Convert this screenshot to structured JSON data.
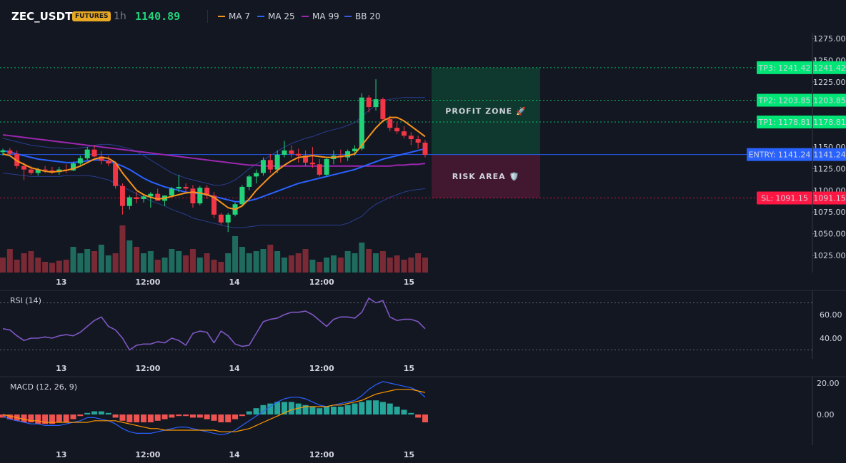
{
  "header": {
    "symbol": "ZEC_USDT",
    "badge": "FUTURES",
    "timeframe": "1h",
    "price": "1140.89",
    "legend": [
      {
        "label": "MA 7",
        "color": "#f7931a"
      },
      {
        "label": "MA 25",
        "color": "#2962ff"
      },
      {
        "label": "MA 99",
        "color": "#9c27b0"
      },
      {
        "label": "BB 20",
        "color": "#1e3a8a"
      }
    ]
  },
  "colors": {
    "bg": "#131722",
    "up": "#26a69a",
    "upBright": "#22d37a",
    "down": "#f23645",
    "grid": "#2a2e39"
  },
  "chart_data": [
    {
      "type": "candlestick",
      "panel": "price",
      "y_ticks": [
        1275,
        1250,
        1225,
        1200,
        1175,
        1150,
        1125,
        1100,
        1075,
        1050,
        1025
      ],
      "y_tick_labels": [
        "1275.00",
        "1250.00",
        "1225.00",
        "1200.00",
        "1175.00",
        "1150.00",
        "1125.00",
        "1100.00",
        "1075.00",
        "1050.00",
        "1025.00"
      ],
      "ylim": [
        1007,
        1290
      ],
      "x_ticks": [
        "13",
        "12:00",
        "14",
        "12:00",
        "15"
      ],
      "candles": [
        [
          1144,
          1148,
          1140,
          1146
        ],
        [
          1146,
          1149,
          1141,
          1142
        ],
        [
          1142,
          1146,
          1125,
          1128
        ],
        [
          1128,
          1132,
          1112,
          1124
        ],
        [
          1124,
          1128,
          1118,
          1120
        ],
        [
          1120,
          1126,
          1117,
          1124
        ],
        [
          1124,
          1128,
          1120,
          1123
        ],
        [
          1123,
          1127,
          1119,
          1121
        ],
        [
          1121,
          1127,
          1118,
          1124
        ],
        [
          1124,
          1130,
          1120,
          1123
        ],
        [
          1123,
          1133,
          1122,
          1131
        ],
        [
          1131,
          1140,
          1129,
          1137
        ],
        [
          1137,
          1150,
          1135,
          1147
        ],
        [
          1147,
          1152,
          1138,
          1139
        ],
        [
          1139,
          1145,
          1130,
          1134
        ],
        [
          1134,
          1140,
          1128,
          1131
        ],
        [
          1131,
          1133,
          1102,
          1105
        ],
        [
          1105,
          1108,
          1072,
          1082
        ],
        [
          1082,
          1094,
          1078,
          1092
        ],
        [
          1092,
          1098,
          1085,
          1090
        ],
        [
          1090,
          1096,
          1086,
          1093
        ],
        [
          1093,
          1098,
          1080,
          1096
        ],
        [
          1096,
          1102,
          1090,
          1088
        ],
        [
          1088,
          1092,
          1082,
          1094
        ],
        [
          1094,
          1104,
          1092,
          1102
        ],
        [
          1102,
          1118,
          1098,
          1104
        ],
        [
          1104,
          1108,
          1098,
          1102
        ],
        [
          1102,
          1106,
          1080,
          1085
        ],
        [
          1085,
          1105,
          1083,
          1103
        ],
        [
          1103,
          1106,
          1090,
          1094
        ],
        [
          1094,
          1098,
          1068,
          1072
        ],
        [
          1072,
          1074,
          1060,
          1063
        ],
        [
          1063,
          1074,
          1052,
          1072
        ],
        [
          1072,
          1086,
          1070,
          1084
        ],
        [
          1084,
          1106,
          1082,
          1104
        ],
        [
          1104,
          1118,
          1100,
          1116
        ],
        [
          1116,
          1124,
          1108,
          1120
        ],
        [
          1120,
          1138,
          1117,
          1135
        ],
        [
          1135,
          1142,
          1120,
          1124
        ],
        [
          1124,
          1146,
          1120,
          1141
        ],
        [
          1141,
          1157,
          1138,
          1146
        ],
        [
          1146,
          1152,
          1138,
          1142
        ],
        [
          1142,
          1148,
          1132,
          1140
        ],
        [
          1140,
          1146,
          1128,
          1132
        ],
        [
          1132,
          1150,
          1126,
          1130
        ],
        [
          1130,
          1136,
          1116,
          1118
        ],
        [
          1118,
          1138,
          1116,
          1136
        ],
        [
          1136,
          1146,
          1130,
          1140
        ],
        [
          1140,
          1147,
          1132,
          1138
        ],
        [
          1138,
          1147,
          1134,
          1145
        ],
        [
          1145,
          1152,
          1140,
          1148
        ],
        [
          1148,
          1212,
          1146,
          1207
        ],
        [
          1207,
          1210,
          1190,
          1196
        ],
        [
          1196,
          1228,
          1192,
          1205
        ],
        [
          1205,
          1207,
          1180,
          1182
        ],
        [
          1182,
          1186,
          1168,
          1172
        ],
        [
          1172,
          1178,
          1165,
          1168
        ],
        [
          1168,
          1174,
          1160,
          1163
        ],
        [
          1163,
          1167,
          1152,
          1159
        ],
        [
          1159,
          1163,
          1148,
          1155
        ],
        [
          1155,
          1158,
          1138,
          1141
        ]
      ],
      "volume": [
        14,
        22,
        12,
        18,
        20,
        14,
        10,
        9,
        11,
        12,
        24,
        18,
        22,
        20,
        26,
        16,
        18,
        44,
        30,
        24,
        18,
        20,
        12,
        14,
        22,
        20,
        16,
        22,
        14,
        18,
        12,
        10,
        18,
        34,
        24,
        18,
        20,
        22,
        26,
        20,
        14,
        16,
        18,
        22,
        12,
        10,
        14,
        16,
        14,
        20,
        18,
        28,
        22,
        18,
        20,
        14,
        16,
        12,
        14,
        18,
        14
      ],
      "volume_up": [
        false,
        false,
        false,
        false,
        false,
        false,
        false,
        false,
        false,
        false,
        true,
        true,
        true,
        false,
        true,
        true,
        false,
        false,
        true,
        false,
        true,
        true,
        false,
        true,
        true,
        true,
        false,
        false,
        true,
        false,
        false,
        false,
        true,
        true,
        true,
        true,
        true,
        true,
        false,
        true,
        true,
        false,
        false,
        false,
        true,
        false,
        true,
        true,
        false,
        true,
        true,
        true,
        false,
        true,
        false,
        false,
        false,
        false,
        false,
        false,
        false
      ],
      "ma7": [
        1142,
        1140,
        1134,
        1130,
        1126,
        1124,
        1122,
        1121,
        1122,
        1123,
        1125,
        1128,
        1132,
        1136,
        1138,
        1137,
        1132,
        1120,
        1110,
        1100,
        1095,
        1092,
        1090,
        1091,
        1093,
        1095,
        1097,
        1098,
        1097,
        1095,
        1092,
        1086,
        1080,
        1078,
        1082,
        1090,
        1100,
        1108,
        1116,
        1123,
        1129,
        1134,
        1138,
        1139,
        1140,
        1139,
        1138,
        1138,
        1139,
        1140,
        1142,
        1152,
        1162,
        1172,
        1180,
        1184,
        1184,
        1180,
        1174,
        1168,
        1162
      ],
      "ma25": [
        1146,
        1144,
        1142,
        1140,
        1138,
        1136,
        1135,
        1134,
        1133,
        1132,
        1132,
        1133,
        1134,
        1135,
        1135,
        1134,
        1131,
        1128,
        1124,
        1119,
        1114,
        1110,
        1107,
        1104,
        1102,
        1100,
        1098,
        1097,
        1096,
        1095,
        1093,
        1091,
        1089,
        1087,
        1087,
        1088,
        1090,
        1093,
        1096,
        1099,
        1102,
        1105,
        1108,
        1110,
        1112,
        1114,
        1116,
        1118,
        1120,
        1122,
        1124,
        1127,
        1130,
        1133,
        1136,
        1138,
        1140,
        1142,
        1144,
        1146,
        1148
      ],
      "ma99": [
        1164,
        1163,
        1162,
        1161,
        1160,
        1159,
        1158,
        1157,
        1156,
        1155,
        1154,
        1153,
        1152,
        1151,
        1150,
        1149,
        1148,
        1147,
        1146,
        1145,
        1144,
        1143,
        1142,
        1141,
        1140,
        1139,
        1138,
        1137,
        1136,
        1135,
        1134,
        1133,
        1132,
        1131,
        1130,
        1129,
        1129,
        1128,
        1128,
        1128,
        1128,
        1128,
        1128,
        1128,
        1128,
        1128,
        1128,
        1128,
        1128,
        1128,
        1128,
        1128,
        1128,
        1128,
        1128,
        1128,
        1129,
        1129,
        1130,
        1130,
        1131
      ],
      "bb_upper": [
        1160,
        1158,
        1156,
        1154,
        1152,
        1151,
        1150,
        1149,
        1149,
        1148,
        1148,
        1149,
        1150,
        1152,
        1153,
        1153,
        1152,
        1150,
        1148,
        1145,
        1140,
        1135,
        1130,
        1125,
        1120,
        1117,
        1114,
        1112,
        1110,
        1108,
        1106,
        1106,
        1108,
        1112,
        1118,
        1125,
        1130,
        1135,
        1140,
        1145,
        1150,
        1154,
        1157,
        1160,
        1162,
        1165,
        1168,
        1170,
        1172,
        1175,
        1178,
        1185,
        1192,
        1198,
        1203,
        1205,
        1206,
        1207,
        1207,
        1207,
        1207
      ],
      "bb_lower": [
        1120,
        1119,
        1118,
        1117,
        1116,
        1116,
        1116,
        1116,
        1116,
        1117,
        1117,
        1117,
        1117,
        1116,
        1114,
        1112,
        1108,
        1104,
        1100,
        1096,
        1092,
        1088,
        1085,
        1082,
        1078,
        1075,
        1072,
        1068,
        1066,
        1064,
        1062,
        1060,
        1058,
        1057,
        1057,
        1058,
        1059,
        1060,
        1060,
        1060,
        1060,
        1060,
        1060,
        1060,
        1060,
        1060,
        1060,
        1060,
        1060,
        1062,
        1066,
        1070,
        1078,
        1084,
        1088,
        1092,
        1095,
        1098,
        1100,
        1101,
        1102
      ],
      "levels": [
        {
          "name": "TP3",
          "label": "TP3: 1241.42",
          "axis": "1241.42",
          "value": 1241.42,
          "color": "#00e676"
        },
        {
          "name": "TP2",
          "label": "TP2: 1203.85",
          "axis": "1203.85",
          "value": 1203.85,
          "color": "#00e676"
        },
        {
          "name": "TP1",
          "label": "TP1: 1178.81",
          "axis": "1178.81",
          "value": 1178.81,
          "color": "#00e676"
        },
        {
          "name": "ENTRY",
          "label": "ENTRY: 1141.24",
          "axis": "1141.24",
          "value": 1141.24,
          "color": "#2962ff"
        },
        {
          "name": "SL",
          "label": "SL: 1091.15",
          "axis": "1091.15",
          "value": 1091.15,
          "color": "#ff1744"
        }
      ],
      "zones": {
        "profit_label": "PROFIT ZONE 🚀",
        "risk_label": "RISK AREA 🛡️"
      }
    },
    {
      "type": "line",
      "panel": "rsi",
      "title": "RSI (14)",
      "y_ticks": [
        60,
        40
      ],
      "y_tick_labels": [
        "60.00",
        "40.00"
      ],
      "ylim": [
        25,
        80
      ],
      "bands": [
        70,
        30
      ],
      "x_ticks": [
        "13",
        "12:00",
        "14",
        "12:00",
        "15"
      ],
      "values": [
        48,
        47,
        42,
        38,
        40,
        40,
        41,
        40,
        42,
        43,
        42,
        45,
        50,
        55,
        58,
        50,
        47,
        40,
        30,
        34,
        35,
        35,
        37,
        36,
        40,
        38,
        34,
        44,
        46,
        45,
        36,
        46,
        42,
        35,
        33,
        34,
        44,
        54,
        56,
        57,
        60,
        62,
        62,
        63,
        60,
        55,
        50,
        56,
        58,
        58,
        57,
        62,
        74,
        70,
        72,
        58,
        55,
        56,
        56,
        54,
        48
      ]
    },
    {
      "type": "bar",
      "panel": "macd",
      "title": "MACD (12, 26, 9)",
      "y_ticks": [
        20,
        0
      ],
      "y_tick_labels": [
        "20.00",
        "0.00"
      ],
      "ylim": [
        -18,
        24
      ],
      "x_ticks": [
        "13",
        "12:00",
        "14",
        "12:00",
        "15"
      ],
      "histogram": [
        -2,
        -3,
        -4,
        -5,
        -5,
        -6,
        -6,
        -6,
        -5,
        -5,
        -3,
        -1,
        1,
        2,
        2,
        1,
        -2,
        -4,
        -5,
        -5,
        -5,
        -5,
        -4,
        -3,
        -2,
        -1,
        -1,
        -2,
        -2,
        -3,
        -4,
        -5,
        -5,
        -3,
        -1,
        2,
        4,
        6,
        7,
        8,
        8,
        8,
        7,
        6,
        5,
        4,
        5,
        5,
        5,
        6,
        7,
        8,
        9,
        9,
        8,
        7,
        5,
        3,
        1,
        -2,
        -5
      ],
      "macd": [
        -1,
        -3,
        -4,
        -5,
        -6,
        -6,
        -7,
        -7,
        -7,
        -6,
        -5,
        -4,
        -2,
        -2,
        -3,
        -4,
        -6,
        -9,
        -11,
        -12,
        -12,
        -12,
        -11,
        -10,
        -9,
        -8,
        -8,
        -9,
        -10,
        -11,
        -12,
        -13,
        -12,
        -10,
        -7,
        -4,
        -1,
        2,
        5,
        8,
        10,
        11,
        11,
        10,
        8,
        6,
        5,
        6,
        7,
        8,
        9,
        12,
        16,
        19,
        21,
        20,
        19,
        18,
        17,
        15,
        11
      ],
      "signal": [
        0,
        -1,
        -2,
        -3,
        -4,
        -4,
        -5,
        -5,
        -5,
        -5,
        -5,
        -5,
        -5,
        -4,
        -4,
        -4,
        -4,
        -5,
        -6,
        -7,
        -8,
        -9,
        -9,
        -10,
        -10,
        -10,
        -10,
        -10,
        -10,
        -10,
        -10,
        -11,
        -11,
        -11,
        -10,
        -9,
        -7,
        -5,
        -3,
        -1,
        1,
        3,
        4,
        5,
        5,
        5,
        5,
        6,
        6,
        7,
        8,
        9,
        11,
        13,
        14,
        15,
        16,
        16,
        16,
        15,
        14
      ]
    }
  ]
}
